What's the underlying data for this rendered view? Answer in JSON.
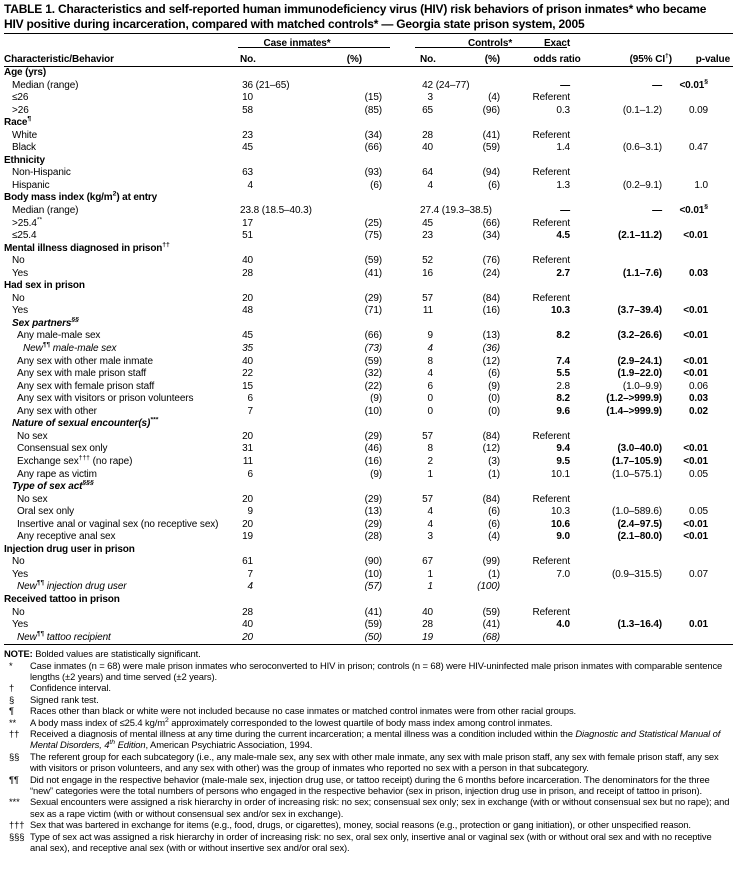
{
  "title": {
    "line1": "TABLE 1. Characteristics and self-reported human immunodeficiency virus (HIV) risk behaviors of prison inmates* who became",
    "line2": "HIV positive during incarceration, compared with matched controls* — Georgia state prison system, 2005"
  },
  "table": {
    "col_groups": {
      "case": "Case inmates*",
      "controls": "Controls*"
    },
    "headers": {
      "characteristic": "Characteristic/Behavior",
      "no": "No.",
      "pct": "(%)",
      "or_line1": "Exact",
      "or_line2": "odds ratio",
      "ci": "(95% CI^{†})",
      "p": "p-value"
    },
    "rows": [
      {
        "l": "Age (yrs)",
        "i": 0,
        "s": "sec"
      },
      {
        "l": "Median (range)",
        "i": 1,
        "cn": "36 (21–65)",
        "tn": "42 (24–77)",
        "or": "—",
        "ci": "—",
        "p": "<0.01^{§}",
        "b": true
      },
      {
        "l": "≤26",
        "i": 1,
        "cn": "10",
        "cp": "(15)",
        "tn": "3",
        "tp": "(4)",
        "or": "Referent"
      },
      {
        "l": ">26",
        "i": 1,
        "cn": "58",
        "cp": "(85)",
        "tn": "65",
        "tp": "(96)",
        "or": "0.3",
        "ci": "(0.1–1.2)",
        "p": "0.09"
      },
      {
        "l": "Race^{¶}",
        "i": 0,
        "s": "sec"
      },
      {
        "l": "White",
        "i": 1,
        "cn": "23",
        "cp": "(34)",
        "tn": "28",
        "tp": "(41)",
        "or": "Referent"
      },
      {
        "l": "Black",
        "i": 1,
        "cn": "45",
        "cp": "(66)",
        "tn": "40",
        "tp": "(59)",
        "or": "1.4",
        "ci": "(0.6–3.1)",
        "p": "0.47"
      },
      {
        "l": "Ethnicity",
        "i": 0,
        "s": "sec"
      },
      {
        "l": "Non-Hispanic",
        "i": 1,
        "cn": "63",
        "cp": "(93)",
        "tn": "64",
        "tp": "(94)",
        "or": "Referent"
      },
      {
        "l": "Hispanic",
        "i": 1,
        "cn": "4",
        "cp": "(6)",
        "tn": "4",
        "tp": "(6)",
        "or": "1.3",
        "ci": "(0.2–9.1)",
        "p": "1.0"
      },
      {
        "l": "Body mass index (kg/m^{2}) at entry",
        "i": 0,
        "s": "sec"
      },
      {
        "l": "Median (range)",
        "i": 1,
        "cn": "23.8 (18.5–40.3)",
        "tn": "27.4 (19.3–38.5)",
        "or": "—",
        "ci": "—",
        "p": "<0.01^{§}",
        "b": true
      },
      {
        "l": ">25.4^{**}",
        "i": 1,
        "cn": "17",
        "cp": "(25)",
        "tn": "45",
        "tp": "(66)",
        "or": "Referent"
      },
      {
        "l": "≤25.4",
        "i": 1,
        "cn": "51",
        "cp": "(75)",
        "tn": "23",
        "tp": "(34)",
        "or": "4.5",
        "ci": "(2.1–11.2)",
        "p": "<0.01",
        "b": true
      },
      {
        "l": "Mental illness diagnosed in prison^{††}",
        "i": 0,
        "s": "sec"
      },
      {
        "l": "No",
        "i": 1,
        "cn": "40",
        "cp": "(59)",
        "tn": "52",
        "tp": "(76)",
        "or": "Referent"
      },
      {
        "l": "Yes",
        "i": 1,
        "cn": "28",
        "cp": "(41)",
        "tn": "16",
        "tp": "(24)",
        "or": "2.7",
        "ci": "(1.1–7.6)",
        "p": "0.03",
        "b": true
      },
      {
        "l": "Had sex in prison",
        "i": 0,
        "s": "sec"
      },
      {
        "l": "No",
        "i": 1,
        "cn": "20",
        "cp": "(29)",
        "tn": "57",
        "tp": "(84)",
        "or": "Referent"
      },
      {
        "l": "Yes",
        "i": 1,
        "cn": "48",
        "cp": "(71)",
        "tn": "11",
        "tp": "(16)",
        "or": "10.3",
        "ci": "(3.7–39.4)",
        "p": "<0.01",
        "b": true
      },
      {
        "l": "Sex partners^{§§}",
        "i": 1,
        "s": "sub"
      },
      {
        "l": "Any male-male sex",
        "i": 2,
        "cn": "45",
        "cp": "(66)",
        "tn": "9",
        "tp": "(13)",
        "or": "8.2",
        "ci": "(3.2–26.6)",
        "p": "<0.01",
        "b": true
      },
      {
        "l": "New^{¶¶} male-male sex",
        "i": 3,
        "s": "new",
        "cn": "35",
        "cp": "(73)",
        "tn": "4",
        "tp": "(36)"
      },
      {
        "l": "Any sex with other male inmate",
        "i": 2,
        "cn": "40",
        "cp": "(59)",
        "tn": "8",
        "tp": "(12)",
        "or": "7.4",
        "ci": "(2.9–24.1)",
        "p": "<0.01",
        "b": true
      },
      {
        "l": "Any sex with male prison staff",
        "i": 2,
        "cn": "22",
        "cp": "(32)",
        "tn": "4",
        "tp": "(6)",
        "or": "5.5",
        "ci": "(1.9–22.0)",
        "p": "<0.01",
        "b": true
      },
      {
        "l": "Any sex with female prison staff",
        "i": 2,
        "cn": "15",
        "cp": "(22)",
        "tn": "6",
        "tp": "(9)",
        "or": "2.8",
        "ci": "(1.0–9.9)",
        "p": "0.06"
      },
      {
        "l": "Any sex with visitors or prison volunteers",
        "i": 2,
        "cn": "6",
        "cp": "(9)",
        "tn": "0",
        "tp": "(0)",
        "or": "8.2",
        "ci": "(1.2–>999.9)",
        "p": "0.03",
        "b": true
      },
      {
        "l": "Any sex with other",
        "i": 2,
        "cn": "7",
        "cp": "(10)",
        "tn": "0",
        "tp": "(0)",
        "or": "9.6",
        "ci": "(1.4–>999.9)",
        "p": "0.02",
        "b": true
      },
      {
        "l": "Nature of sexual encounter(s)^{***}",
        "i": 1,
        "s": "sub"
      },
      {
        "l": "No sex",
        "i": 2,
        "cn": "20",
        "cp": "(29)",
        "tn": "57",
        "tp": "(84)",
        "or": "Referent"
      },
      {
        "l": "Consensual sex only",
        "i": 2,
        "cn": "31",
        "cp": "(46)",
        "tn": "8",
        "tp": "(12)",
        "or": "9.4",
        "ci": "(3.0–40.0)",
        "p": "<0.01",
        "b": true
      },
      {
        "l": "Exchange sex^{†††} (no rape)",
        "i": 2,
        "cn": "11",
        "cp": "(16)",
        "tn": "2",
        "tp": "(3)",
        "or": "9.5",
        "ci": "(1.7–105.9)",
        "p": "<0.01",
        "b": true
      },
      {
        "l": "Any rape as victim",
        "i": 2,
        "cn": "6",
        "cp": "(9)",
        "tn": "1",
        "tp": "(1)",
        "or": "10.1",
        "ci": "(1.0–575.1)",
        "p": "0.05"
      },
      {
        "l": "Type of sex act^{§§§}",
        "i": 1,
        "s": "sub"
      },
      {
        "l": "No sex",
        "i": 2,
        "cn": "20",
        "cp": "(29)",
        "tn": "57",
        "tp": "(84)",
        "or": "Referent"
      },
      {
        "l": "Oral sex only",
        "i": 2,
        "cn": "9",
        "cp": "(13)",
        "tn": "4",
        "tp": "(6)",
        "or": "10.3",
        "ci": "(1.0–589.6)",
        "p": "0.05"
      },
      {
        "l": "Insertive anal or vaginal sex (no receptive sex)",
        "i": 2,
        "cn": "20",
        "cp": "(29)",
        "tn": "4",
        "tp": "(6)",
        "or": "10.6",
        "ci": "(2.4–97.5)",
        "p": "<0.01",
        "b": true
      },
      {
        "l": "Any receptive anal sex",
        "i": 2,
        "cn": "19",
        "cp": "(28)",
        "tn": "3",
        "tp": "(4)",
        "or": "9.0",
        "ci": "(2.1–80.0)",
        "p": "<0.01",
        "b": true
      },
      {
        "l": "Injection drug user in prison",
        "i": 0,
        "s": "sec"
      },
      {
        "l": "No",
        "i": 1,
        "cn": "61",
        "cp": "(90)",
        "tn": "67",
        "tp": "(99)",
        "or": "Referent"
      },
      {
        "l": "Yes",
        "i": 1,
        "cn": "7",
        "cp": "(10)",
        "tn": "1",
        "tp": "(1)",
        "or": "7.0",
        "ci": "(0.9–315.5)",
        "p": "0.07"
      },
      {
        "l": "New^{¶¶} injection drug user",
        "i": 2,
        "s": "new",
        "cn": "4",
        "cp": "(57)",
        "tn": "1",
        "tp": "(100)"
      },
      {
        "l": "Received tattoo in prison",
        "i": 0,
        "s": "sec"
      },
      {
        "l": "No",
        "i": 1,
        "cn": "28",
        "cp": "(41)",
        "tn": "40",
        "tp": "(59)",
        "or": "Referent"
      },
      {
        "l": "Yes",
        "i": 1,
        "cn": "40",
        "cp": "(59)",
        "tn": "28",
        "tp": "(41)",
        "or": "4.0",
        "ci": "(1.3–16.4)",
        "p": "0.01",
        "b": true
      },
      {
        "l": "New^{¶¶} tattoo recipient",
        "i": 2,
        "s": "new",
        "cn": "20",
        "cp": "(50)",
        "tn": "19",
        "tp": "(68)"
      }
    ]
  },
  "footnotes": {
    "note_label": "NOTE:",
    "note_text": "Bolded values are statistically significant.",
    "items": [
      {
        "marker": "*",
        "text": "Case inmates (n = 68) were male prison inmates who seroconverted to HIV in prison; controls (n = 68) were HIV-uninfected male prison inmates with comparable sentence lengths (±2 years) and time served (±2 years)."
      },
      {
        "marker": "†",
        "text": "Confidence interval."
      },
      {
        "marker": "§",
        "text": "Signed rank test."
      },
      {
        "marker": "¶",
        "text": "Races other than black or white were not included because no case inmates or matched control inmates were from other racial groups."
      },
      {
        "marker": "**",
        "text": "A body mass index of ≤25.4 kg/m^{2} approximately corresponded to the lowest quartile of body mass index among control inmates."
      },
      {
        "marker": "††",
        "text": "Received a diagnosis of mental illness at any time during the current incarceration; a mental illness was a condition included within the ~{Diagnostic and Statistical Manual of Mental Disorders, 4^{th} Edition}, American Psychiatric Association, 1994."
      },
      {
        "marker": "§§",
        "text": "The referent group for each subcategory (i.e., any male-male sex, any sex with other male inmate, any sex with male prison staff, any sex with female prison staff, any sex with visitors or prison volunteers, and any sex with other) was the group of inmates who reported no sex with a person in that subcategory."
      },
      {
        "marker": "¶¶",
        "text": "Did not engage in the respective behavior (male-male sex, injection drug use, or tattoo receipt) during the 6 months before incarceration. The denominators for the three “new” categories were the total numbers of persons who engaged in the respective behavior (sex in prison, injection drug use in prison, and receipt of tattoo in prison)."
      },
      {
        "marker": "***",
        "text": "Sexual encounters were assigned a risk hierarchy in order of increasing risk: no sex; consensual sex only; sex in exchange (with or without consensual sex but no rape); and sex as a rape victim (with or without consensual sex and/or sex in exchange)."
      },
      {
        "marker": "†††",
        "text": "Sex that was bartered in exchange for items (e.g., food, drugs, or cigarettes), money, social reasons (e.g., protection or gang initiation), or other unspecified reason."
      },
      {
        "marker": "§§§",
        "text": "Type of sex act was assigned a risk hierarchy in order of increasing risk: no sex, oral sex only, insertive anal or vaginal sex (with or without oral sex and with no receptive anal sex), and receptive anal sex (with or without insertive sex and/or oral sex)."
      }
    ]
  }
}
